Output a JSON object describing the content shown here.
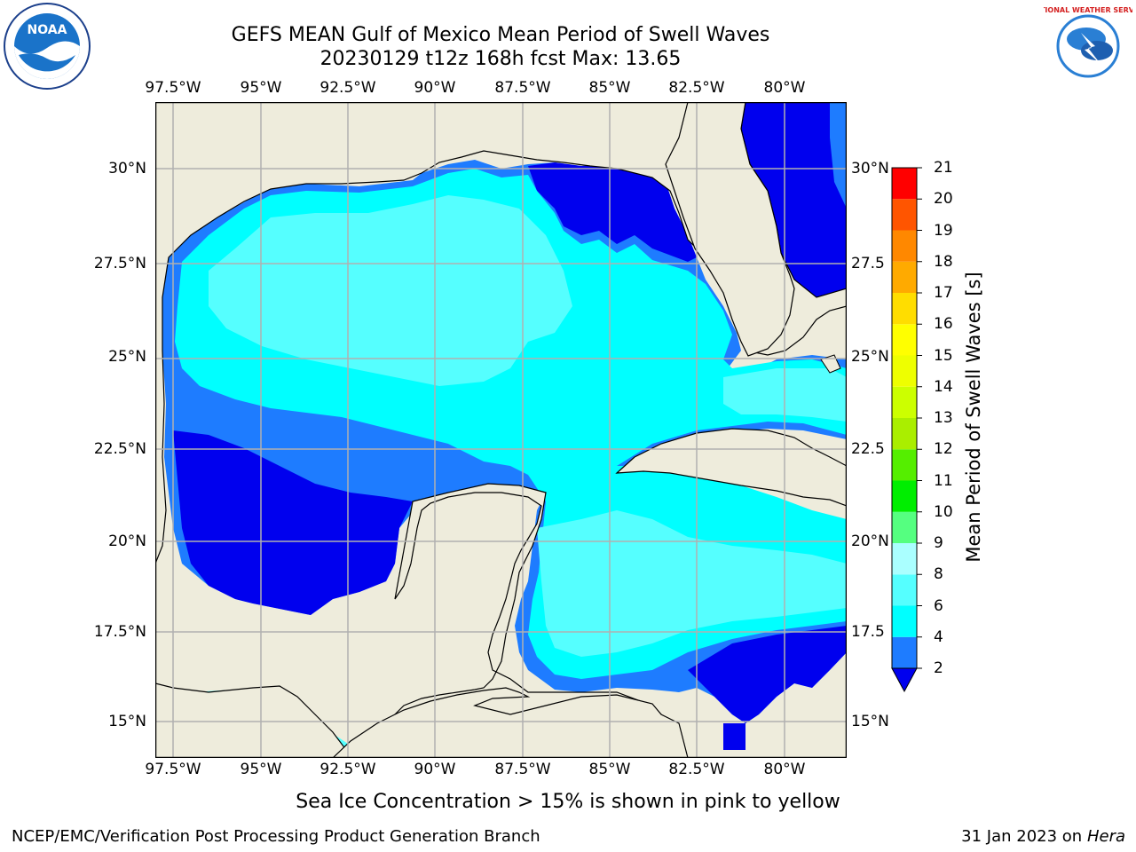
{
  "title": {
    "line1": "GEFS MEAN Gulf of Mexico Mean Period of Swell Waves",
    "line2": "20230129 t12z 168h fcst   Max: 13.65"
  },
  "logos": {
    "left": "noaa-logo",
    "right": "nws-logo",
    "left_text": "NOAA",
    "right_text": "NATIONAL WEATHER SERVICE"
  },
  "map": {
    "lon_labels": [
      "97.5°W",
      "95°W",
      "92.5°W",
      "90°W",
      "87.5°W",
      "85°W",
      "82.5°W",
      "80°W"
    ],
    "lat_labels_left": [
      "30°N",
      "27.5°N",
      "25°N",
      "22.5°N",
      "20°N",
      "17.5°N",
      "15°N"
    ],
    "lat_labels_right": [
      "30°N",
      "27.5",
      "25°N",
      "22.5",
      "20°N",
      "17.5",
      "15°N"
    ],
    "colors": {
      "land": "#eeecdc",
      "grid": "#b0b0b0",
      "coast": "#000000",
      "fill_2_4": "#0000ee",
      "fill_4_6": "#1e7cff",
      "fill_6_8": "#00ffff",
      "fill_8_9": "#55ffff"
    }
  },
  "colorbar": {
    "title": "Mean Period of Swell Waves [s]",
    "tick_labels": [
      "2",
      "4",
      "6",
      "8",
      "9",
      "10",
      "11",
      "12",
      "13",
      "14",
      "15",
      "16",
      "17",
      "18",
      "19",
      "20",
      "21"
    ],
    "colors": [
      "#1e7cff",
      "#00ffff",
      "#55ffff",
      "#aaffff",
      "#55ff80",
      "#00ee00",
      "#55ee00",
      "#aaee00",
      "#ccff00",
      "#eeff00",
      "#ffff00",
      "#ffdd00",
      "#ffaa00",
      "#ff8800",
      "#ff5500",
      "#ff2200",
      "#ff0000"
    ],
    "extend_color": "#0000ee"
  },
  "footnote": "Sea Ice Concentration > 15% is shown in pink to yellow",
  "credits": {
    "left": "NCEP/EMC/Verification Post Processing Product Generation Branch",
    "right_date": "31 Jan 2023 on ",
    "right_host": "Hera"
  }
}
